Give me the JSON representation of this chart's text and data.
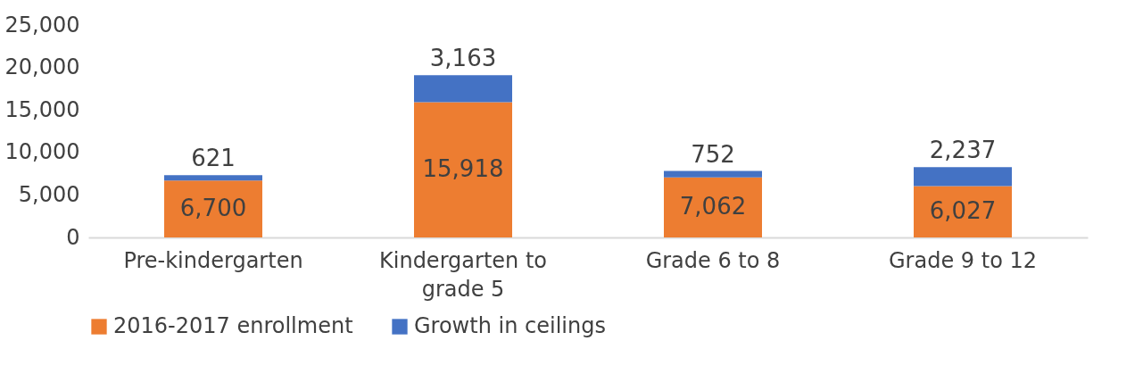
{
  "chart_data": {
    "type": "bar",
    "stacked": true,
    "categories": [
      "Pre-kindergarten",
      "Kindergarten to grade 5",
      "Grade 6 to 8",
      "Grade 9 to 12"
    ],
    "series": [
      {
        "name": "2016-2017 enrollment",
        "color": "#ed7d31",
        "values": [
          6700,
          15918,
          7062,
          6027
        ],
        "value_labels": [
          "6,700",
          "15,918",
          "7,062",
          "6,027"
        ]
      },
      {
        "name": "Growth in ceilings",
        "color": "#4472c4",
        "values": [
          621,
          3163,
          752,
          2237
        ],
        "value_labels": [
          "621",
          "3,163",
          "752",
          "2,237"
        ]
      }
    ],
    "ylim": [
      0,
      25000
    ],
    "yticks": [
      0,
      {
        "value": 5000,
        "label": "5,000"
      },
      {
        "value": 10000,
        "label": "10,000"
      },
      {
        "value": 15000,
        "label": "15,000"
      },
      {
        "value": 20000,
        "label": "20,000"
      },
      {
        "value": 25000,
        "label": "25,000"
      }
    ],
    "grid": false,
    "legend": "bottom"
  }
}
